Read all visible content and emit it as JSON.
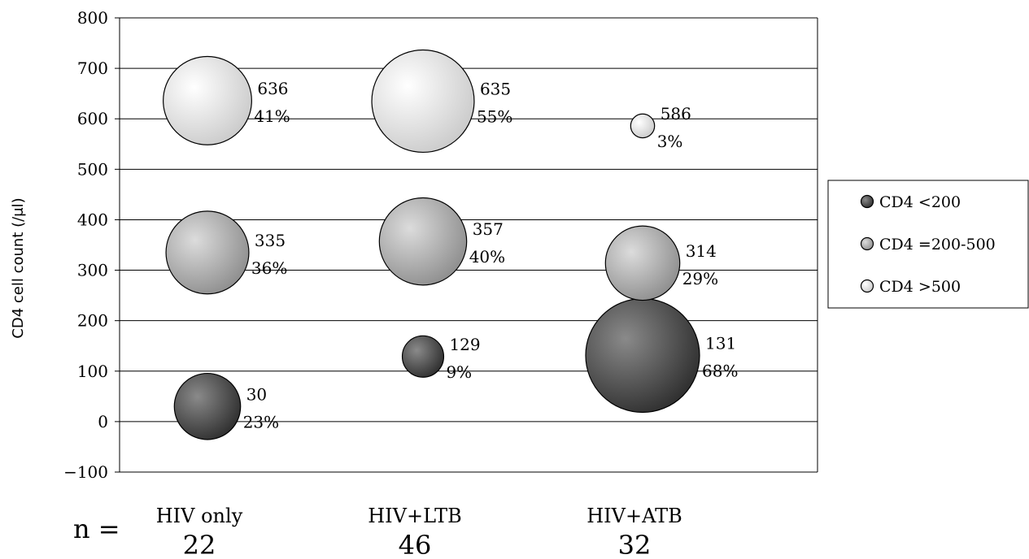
{
  "chart_data": {
    "type": "bubble",
    "ylabel": "CD4 cell count (/μl)",
    "ylim": [
      -100,
      800
    ],
    "yticks": [
      -100,
      0,
      100,
      200,
      300,
      400,
      500,
      600,
      700,
      800
    ],
    "ytick_labels": [
      "−100",
      "0",
      "100",
      "200",
      "300",
      "400",
      "500",
      "600",
      "700",
      "800"
    ],
    "grid": true,
    "legend_position": "right",
    "categories": [
      "HIV only",
      "HIV+LTB",
      "HIV+ATB"
    ],
    "n_prefix": "n =",
    "n_values": [
      "22",
      "46",
      "32"
    ],
    "series": [
      {
        "name": "CD4 <200",
        "color": "#2a2a2a",
        "highlight": "#8a8a8a",
        "values": [
          30,
          129,
          131
        ],
        "percent": [
          23,
          9,
          68
        ],
        "value_labels": [
          "30",
          "129",
          "131"
        ],
        "percent_labels": [
          "23%",
          "9%",
          "68%"
        ]
      },
      {
        "name": "CD4 =200-500",
        "color": "#8a8a8a",
        "highlight": "#dcdcdc",
        "values": [
          335,
          357,
          314
        ],
        "percent": [
          36,
          40,
          29
        ],
        "value_labels": [
          "335",
          "357",
          "314"
        ],
        "percent_labels": [
          "36%",
          "40%",
          "29%"
        ]
      },
      {
        "name": "CD4 >500",
        "color": "#c8c8c8",
        "highlight": "#ffffff",
        "values": [
          636,
          635,
          586
        ],
        "percent": [
          41,
          55,
          3
        ],
        "value_labels": [
          "636",
          "635",
          "586"
        ],
        "percent_labels": [
          "41%",
          "55%",
          "3%"
        ]
      }
    ]
  }
}
